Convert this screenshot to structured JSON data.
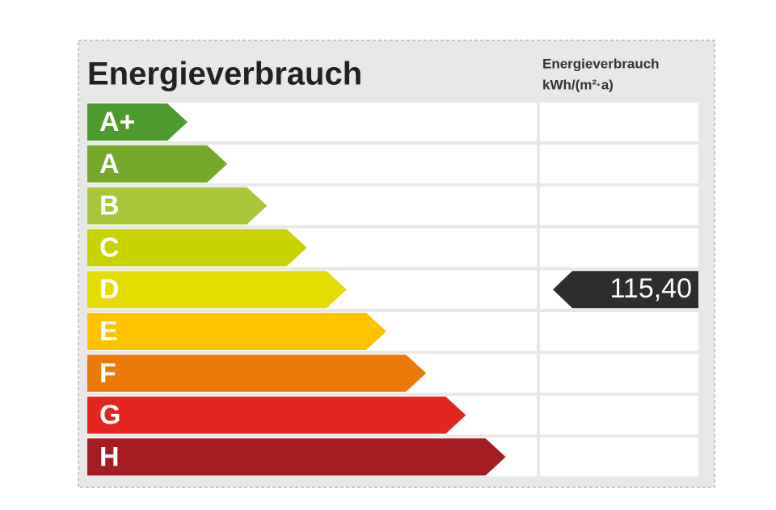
{
  "title": "Energieverbrauch",
  "column_header": [
    "Energieverbrauch",
    "kWh/(m²·a)"
  ],
  "classes": [
    {
      "label": "A+",
      "color": "#4f9a2e"
    },
    {
      "label": "A",
      "color": "#76a82b"
    },
    {
      "label": "B",
      "color": "#a9c63a"
    },
    {
      "label": "C",
      "color": "#c8d400"
    },
    {
      "label": "D",
      "color": "#e5dc00",
      "value": "115,40"
    },
    {
      "label": "E",
      "color": "#fdc300"
    },
    {
      "label": "F",
      "color": "#ec7a0a"
    },
    {
      "label": "G",
      "color": "#e3261f"
    },
    {
      "label": "H",
      "color": "#a51d23"
    }
  ]
}
